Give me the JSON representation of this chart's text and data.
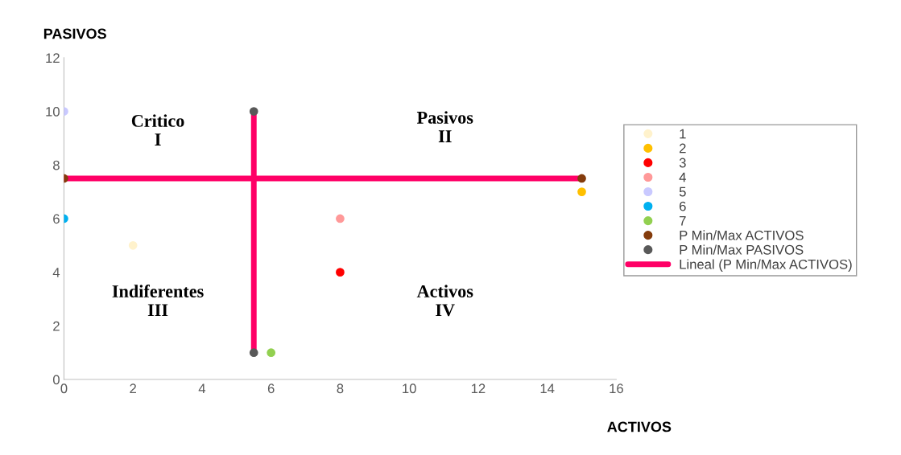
{
  "chart_data": {
    "type": "scatter",
    "xlabel": "ACTIVOS",
    "ylabel": "PASIVOS",
    "xlim": [
      0,
      16
    ],
    "xticks": [
      0,
      2,
      4,
      6,
      8,
      10,
      12,
      14,
      16
    ],
    "ylim": [
      0,
      12
    ],
    "yticks": [
      0,
      2,
      4,
      6,
      8,
      10,
      12
    ],
    "grid": false,
    "legend": "right",
    "marker": "circle",
    "annotations": [
      "Critico\nI",
      "Pasivos\nII",
      "Indiferentes\nIII",
      "Activos\nIV"
    ],
    "series": [
      {
        "name": "1",
        "color": "#fff2cc",
        "x": [
          2
        ],
        "values": [
          5
        ]
      },
      {
        "name": "2",
        "color": "#ffc000",
        "x": [
          15
        ],
        "values": [
          7
        ]
      },
      {
        "name": "3",
        "color": "#ff0000",
        "x": [
          8
        ],
        "values": [
          4
        ]
      },
      {
        "name": "4",
        "color": "#ff9999",
        "x": [
          8
        ],
        "values": [
          6
        ]
      },
      {
        "name": "5",
        "color": "#c9c9ff",
        "x": [
          0
        ],
        "values": [
          10
        ]
      },
      {
        "name": "6",
        "color": "#00b0f0",
        "x": [
          0
        ],
        "values": [
          6
        ]
      },
      {
        "name": "7",
        "color": "#92d050",
        "x": [
          6
        ],
        "values": [
          1
        ]
      },
      {
        "name": "P Min/Max ACTIVOS",
        "color": "#843c0c",
        "x": [
          0,
          15
        ],
        "values": [
          7.5,
          7.5
        ]
      },
      {
        "name": "P Min/Max PASIVOS",
        "color": "#595959",
        "x": [
          5.5,
          5.5
        ],
        "values": [
          10,
          1
        ]
      },
      {
        "name": "Lineal (P Min/Max ACTIVOS)",
        "type": "line",
        "marker": "none",
        "color": "#ff0066",
        "x": [
          0,
          15
        ],
        "values": [
          7.5,
          7.5
        ]
      },
      {
        "type": "line",
        "marker": "none",
        "color": "#ff0066",
        "x": [
          5.5,
          5.5
        ],
        "values": [
          10,
          1
        ]
      }
    ]
  }
}
